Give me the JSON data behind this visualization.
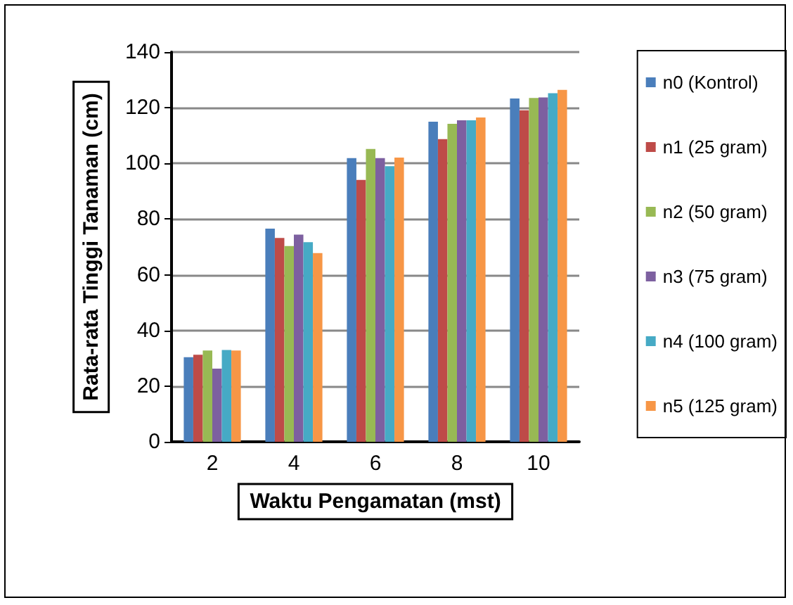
{
  "chart_data": {
    "type": "bar",
    "xlabel": "Waktu Pengamatan (mst)",
    "ylabel": "Rata-rata Tinggi Tanaman (cm)",
    "categories": [
      "2",
      "4",
      "6",
      "8",
      "10"
    ],
    "series": [
      {
        "name": "n0 (Kontrol)",
        "color": "#4a7ebb",
        "values": [
          30.4,
          76.6,
          101.9,
          115,
          123.3
        ]
      },
      {
        "name": "n1 (25 gram)",
        "color": "#be4b48",
        "values": [
          31.3,
          73.2,
          94.1,
          108.7,
          119.1
        ]
      },
      {
        "name": "n2 (50 gram)",
        "color": "#98b954",
        "values": [
          32.8,
          70.3,
          105.2,
          114.2,
          123.5
        ]
      },
      {
        "name": "n3 (75 gram)",
        "color": "#7d60a0",
        "values": [
          26.3,
          74.4,
          101.9,
          115.5,
          123.7
        ]
      },
      {
        "name": "n4 (100 gram)",
        "color": "#46aac5",
        "values": [
          33,
          71.7,
          99,
          115.5,
          125.2
        ]
      },
      {
        "name": "n5 (125 gram)",
        "color": "#f79646",
        "values": [
          32.8,
          67.8,
          102.1,
          116.5,
          126.4
        ]
      }
    ],
    "ylim": [
      0,
      140
    ],
    "yticks": [
      0,
      20,
      40,
      60,
      80,
      100,
      120,
      140
    ],
    "grid": "y",
    "legend": "right"
  }
}
